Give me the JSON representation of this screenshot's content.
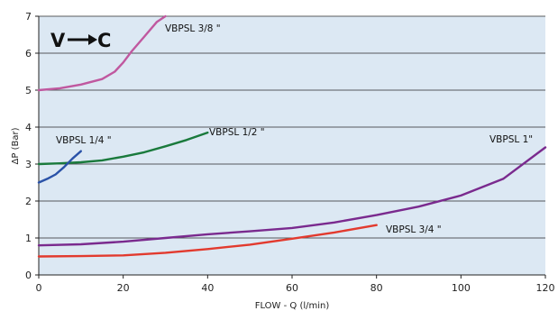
{
  "chart_data": {
    "type": "line",
    "title": "",
    "xlabel": "FLOW - Q (l/min)",
    "ylabel": "ΔP (Bar)",
    "xlim": [
      0,
      120
    ],
    "ylim": [
      0,
      7
    ],
    "xticks": [
      0,
      20,
      40,
      60,
      80,
      100,
      120
    ],
    "yticks": [
      0,
      1,
      2,
      3,
      4,
      5,
      6,
      7
    ],
    "grid": "horizontal",
    "badge": {
      "from": "V",
      "to": "C"
    },
    "series": [
      {
        "name": "VBPSL 3/8 \"",
        "color": "#c0589f",
        "x": [
          0,
          5,
          10,
          15,
          18,
          20,
          22,
          25,
          28,
          30
        ],
        "y": [
          5.0,
          5.05,
          5.15,
          5.3,
          5.5,
          5.75,
          6.05,
          6.45,
          6.85,
          7.0
        ]
      },
      {
        "name": "VBPSL 1/2 \"",
        "color": "#1a7a3c",
        "x": [
          0,
          5,
          10,
          15,
          20,
          25,
          30,
          35,
          40
        ],
        "y": [
          3.0,
          3.02,
          3.05,
          3.1,
          3.2,
          3.32,
          3.48,
          3.65,
          3.85
        ]
      },
      {
        "name": "VBPSL 1/4 \"",
        "color": "#2a52a8",
        "x": [
          0,
          2,
          4,
          6,
          8,
          10
        ],
        "y": [
          2.5,
          2.6,
          2.72,
          2.92,
          3.15,
          3.35
        ]
      },
      {
        "name": "VBPSL 1\"",
        "color": "#7a2a8e",
        "x": [
          0,
          10,
          20,
          30,
          40,
          50,
          60,
          70,
          80,
          90,
          100,
          110,
          120
        ],
        "y": [
          0.8,
          0.83,
          0.9,
          1.0,
          1.1,
          1.18,
          1.27,
          1.42,
          1.62,
          1.85,
          2.15,
          2.6,
          3.45
        ]
      },
      {
        "name": "VBPSL 3/4 \"",
        "color": "#e23a2e",
        "x": [
          0,
          10,
          20,
          30,
          40,
          50,
          60,
          70,
          80
        ],
        "y": [
          0.5,
          0.51,
          0.53,
          0.6,
          0.7,
          0.82,
          0.98,
          1.15,
          1.35
        ]
      }
    ]
  }
}
